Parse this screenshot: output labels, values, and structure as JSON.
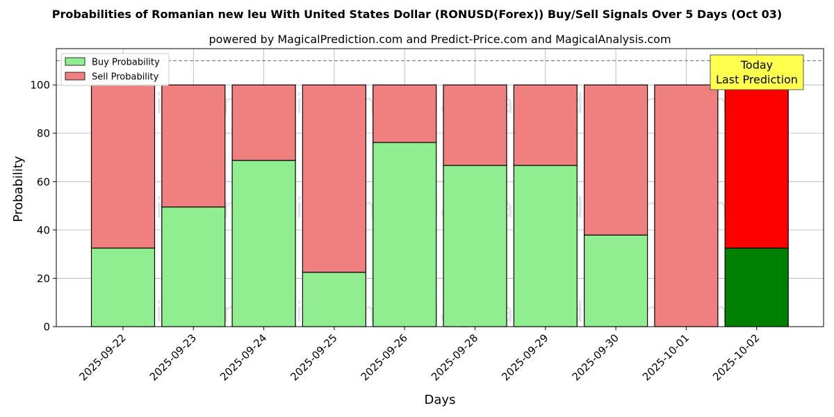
{
  "chart_data": {
    "type": "bar",
    "stacked": true,
    "title": "Probabilities of Romanian new leu With United States Dollar (RONUSD(Forex)) Buy/Sell Signals Over 5 Days (Oct 03)",
    "subtitle": "powered by MagicalPrediction.com and Predict-Price.com and MagicalAnalysis.com",
    "xlabel": "Days",
    "ylabel": "Probability",
    "ylim": [
      0,
      115
    ],
    "yticks": [
      0,
      20,
      40,
      60,
      80,
      100
    ],
    "reference_line": 110,
    "grid": true,
    "legend_position": "top-left",
    "categories": [
      "2025-09-22",
      "2025-09-23",
      "2025-09-24",
      "2025-09-25",
      "2025-09-26",
      "2025-09-28",
      "2025-09-29",
      "2025-09-30",
      "2025-10-01",
      "2025-10-02"
    ],
    "series": [
      {
        "name": "Buy Probability",
        "values": [
          32.5,
          49.5,
          68.8,
          22.5,
          76.2,
          66.7,
          66.7,
          37.9,
          0,
          32.5
        ],
        "color": "#90ee90",
        "highlight_color": "#008000"
      },
      {
        "name": "Sell Probability",
        "values": [
          67.5,
          50.5,
          31.2,
          77.5,
          23.8,
          33.3,
          33.3,
          62.1,
          100,
          67.5
        ],
        "color": "#f08080",
        "highlight_color": "#ff0000"
      }
    ],
    "highlight_index": 9,
    "annotation": {
      "line1": "Today",
      "line2": "Last Prediction",
      "background": "#ffff4d"
    },
    "watermarks": [
      "MagicalAnalysis.com",
      "MagicalPrediction.com"
    ]
  }
}
